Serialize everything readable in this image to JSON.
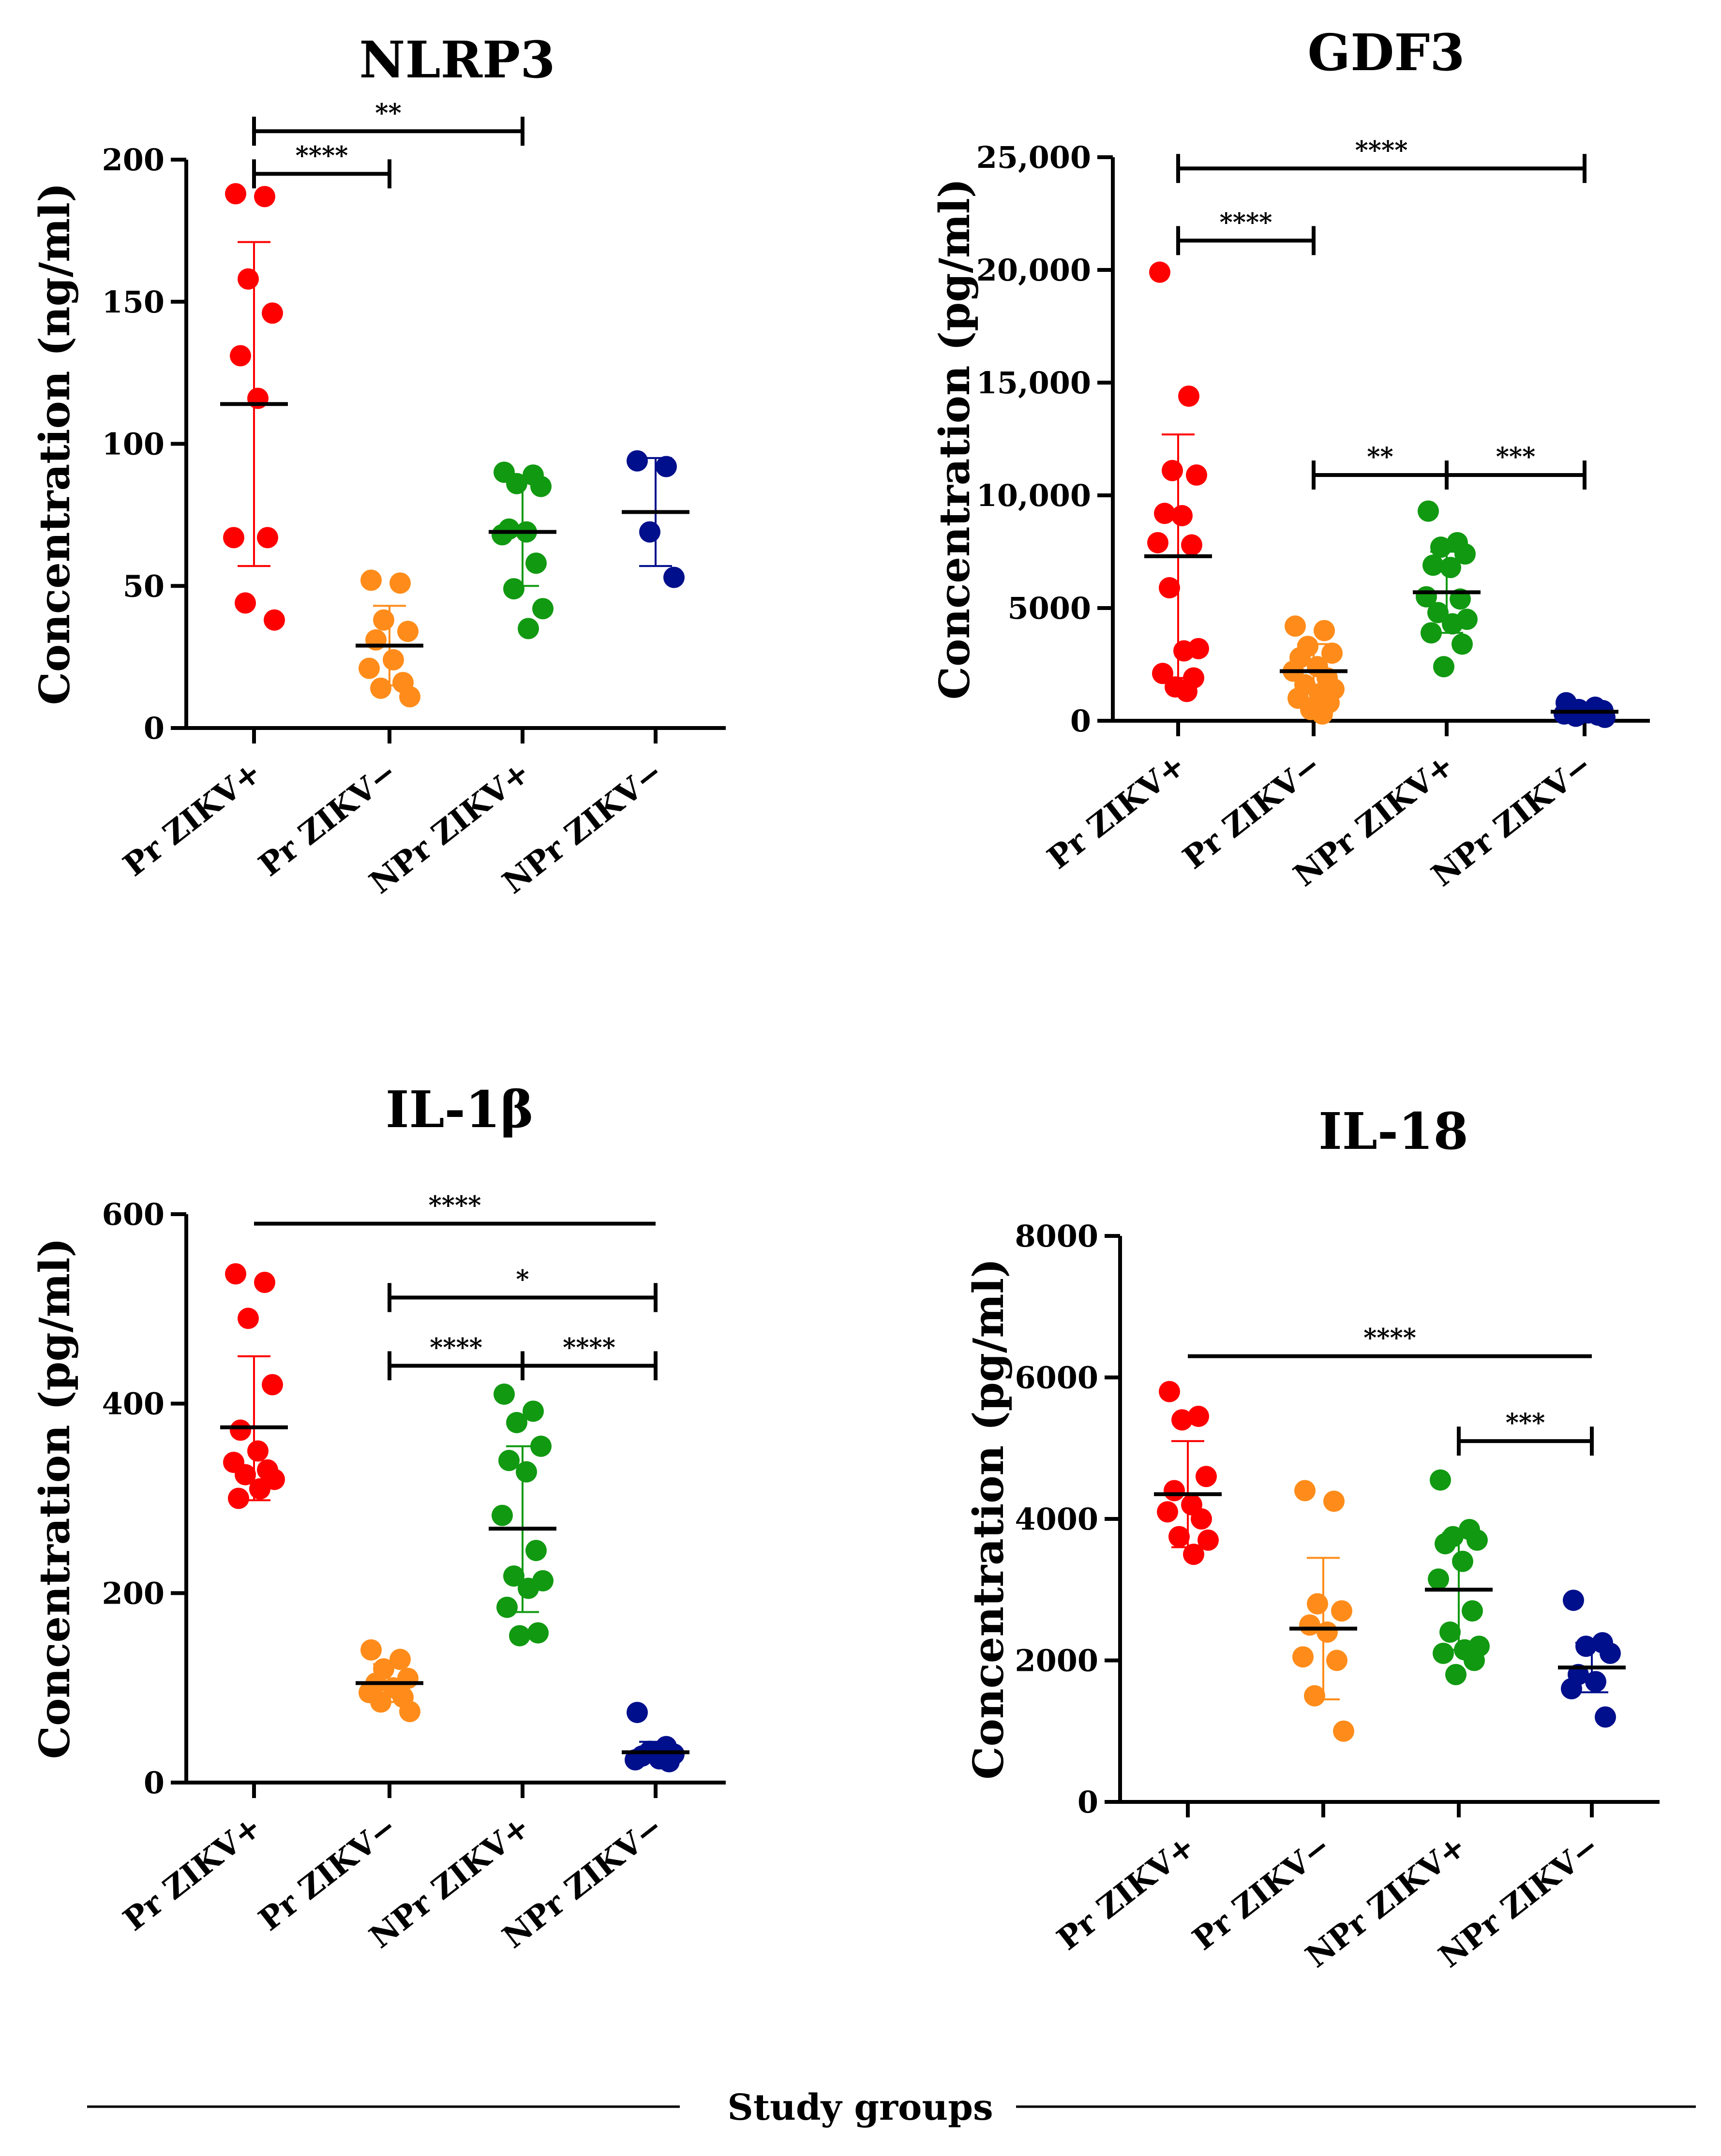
{
  "footer": {
    "label": "Study groups"
  },
  "group_colors": [
    "#ff0000",
    "#ff8c1a",
    "#119911",
    "#000f8c"
  ],
  "chart_data": [
    {
      "type": "scatter",
      "title": "NLRP3",
      "ylabel": "Concentration (ng/ml)",
      "ylim": [
        0,
        200
      ],
      "yticks": [
        0,
        50,
        100,
        150,
        200
      ],
      "ytick_labels": [
        "0",
        "50",
        "100",
        "150",
        "200"
      ],
      "categories": [
        "Pr ZIKV+",
        "Pr ZIKV−",
        "NPr ZIKV+",
        "NPr ZIKV−"
      ],
      "groups": [
        {
          "name": "Pr ZIKV+",
          "mean": 114,
          "sd_low": 57,
          "sd_high": 171,
          "points": [
            188,
            187,
            158,
            146,
            131,
            116,
            67,
            67,
            44,
            38
          ]
        },
        {
          "name": "Pr ZIKV−",
          "mean": 29,
          "sd_low": 15,
          "sd_high": 43,
          "points": [
            52,
            51,
            38,
            34,
            31,
            24,
            21,
            16,
            14,
            11
          ]
        },
        {
          "name": "NPr ZIKV+",
          "mean": 69,
          "sd_low": 50,
          "sd_high": 88,
          "points": [
            90,
            89,
            86,
            85,
            70,
            69,
            68,
            58,
            49,
            42,
            35
          ]
        },
        {
          "name": "NPr ZIKV−",
          "mean": 76,
          "sd_low": 57,
          "sd_high": 95,
          "points": [
            94,
            92,
            69,
            53
          ]
        }
      ],
      "comparisons": [
        {
          "from": 0,
          "to": 1,
          "label": "****",
          "y": 195,
          "center_tick": false
        },
        {
          "from": 0,
          "to": 2,
          "label": "**",
          "y": 210,
          "center_tick": false
        }
      ]
    },
    {
      "type": "scatter",
      "title": "GDF3",
      "ylabel": "Concentration (pg/ml)",
      "ylim": [
        0,
        25000
      ],
      "yticks": [
        0,
        5000,
        10000,
        15000,
        20000,
        25000
      ],
      "ytick_labels": [
        "0",
        "5000",
        "10,000",
        "15,000",
        "20,000",
        "25,000"
      ],
      "categories": [
        "Pr ZIKV+",
        "Pr ZIKV−",
        "NPr ZIKV+",
        "NPr ZIKV−"
      ],
      "groups": [
        {
          "name": "Pr ZIKV+",
          "mean": 7300,
          "sd_low": 1900,
          "sd_high": 12700,
          "points": [
            19900,
            14400,
            11100,
            10900,
            9200,
            9100,
            7900,
            7800,
            5900,
            3200,
            3100,
            2100,
            1900,
            1500,
            1300
          ]
        },
        {
          "name": "Pr ZIKV−",
          "mean": 2200,
          "sd_low": 1000,
          "sd_high": 3400,
          "points": [
            4200,
            4000,
            3300,
            3000,
            2800,
            2400,
            2200,
            1900,
            1600,
            1400,
            1200,
            1000,
            800,
            500,
            300
          ]
        },
        {
          "name": "NPr ZIKV+",
          "mean": 5700,
          "sd_low": 3900,
          "sd_high": 7500,
          "points": [
            9300,
            7900,
            7700,
            7400,
            6900,
            6800,
            5500,
            5400,
            4800,
            4500,
            4300,
            3900,
            3400,
            2400
          ]
        },
        {
          "name": "NPr ZIKV−",
          "mean": 400,
          "sd_low": 200,
          "sd_high": 600,
          "points": [
            800,
            600,
            500,
            450,
            400,
            350,
            300,
            250,
            200,
            150
          ]
        }
      ],
      "comparisons": [
        {
          "from": 0,
          "to": 3,
          "label": "****",
          "y": 24500,
          "center_tick": false
        },
        {
          "from": 0,
          "to": 1,
          "label": "****",
          "y": 21300,
          "center_tick": false
        },
        {
          "from": 1,
          "to": 3,
          "label": "**",
          "label2": "***",
          "y": 10900,
          "center_tick": true
        }
      ]
    },
    {
      "type": "scatter",
      "title": "IL-1β",
      "ylabel": "Concentration (pg/ml)",
      "ylim": [
        0,
        600
      ],
      "yticks": [
        0,
        200,
        400,
        600
      ],
      "ytick_labels": [
        "0",
        "200",
        "400",
        "600"
      ],
      "categories": [
        "Pr ZIKV+",
        "Pr ZIKV−",
        "NPr ZIKV+",
        "NPr ZIKV−"
      ],
      "groups": [
        {
          "name": "Pr ZIKV+",
          "mean": 375,
          "sd_low": 298,
          "sd_high": 450,
          "points": [
            537,
            528,
            490,
            420,
            372,
            350,
            338,
            330,
            325,
            320,
            310,
            300
          ]
        },
        {
          "name": "Pr ZIKV−",
          "mean": 105,
          "sd_low": 85,
          "sd_high": 125,
          "points": [
            140,
            130,
            120,
            110,
            105,
            100,
            95,
            90,
            85,
            75
          ]
        },
        {
          "name": "NPr ZIKV+",
          "mean": 268,
          "sd_low": 180,
          "sd_high": 355,
          "points": [
            410,
            392,
            380,
            355,
            340,
            328,
            282,
            245,
            218,
            213,
            205,
            185,
            158,
            155
          ]
        },
        {
          "name": "NPr ZIKV−",
          "mean": 32,
          "sd_low": 22,
          "sd_high": 43,
          "points": [
            74,
            38,
            33,
            30,
            28,
            25,
            24,
            22
          ]
        }
      ],
      "comparisons": [
        {
          "from": 0,
          "to": 3,
          "label": "****",
          "y": 590,
          "center_tick": false,
          "no_caps": true
        },
        {
          "from": 1,
          "to": 3,
          "label": "*",
          "y": 512,
          "center_tick": false
        },
        {
          "from": 1,
          "to": 3,
          "label": "****",
          "label2": "****",
          "y": 440,
          "center_tick": true
        }
      ]
    },
    {
      "type": "scatter",
      "title": "IL-18",
      "ylabel": "Concentration (pg/ml)",
      "ylim": [
        0,
        8000
      ],
      "yticks": [
        0,
        2000,
        4000,
        6000,
        8000
      ],
      "ytick_labels": [
        "0",
        "2000",
        "4000",
        "6000",
        "8000"
      ],
      "categories": [
        "Pr ZIKV+",
        "Pr ZIKV−",
        "NPr ZIKV+",
        "NPr ZIKV−"
      ],
      "groups": [
        {
          "name": "Pr ZIKV+",
          "mean": 4350,
          "sd_low": 3600,
          "sd_high": 5100,
          "points": [
            5800,
            5450,
            5400,
            4600,
            4400,
            4200,
            4100,
            4000,
            3750,
            3700,
            3500
          ]
        },
        {
          "name": "Pr ZIKV−",
          "mean": 2450,
          "sd_low": 1450,
          "sd_high": 3450,
          "points": [
            4400,
            4250,
            2800,
            2700,
            2500,
            2400,
            2050,
            2000,
            1500,
            1000
          ]
        },
        {
          "name": "NPr ZIKV+",
          "mean": 3000,
          "sd_low": 2150,
          "sd_high": 3800,
          "points": [
            4550,
            3850,
            3750,
            3700,
            3650,
            3400,
            3150,
            2700,
            2400,
            2200,
            2150,
            2100,
            2000,
            1800
          ]
        },
        {
          "name": "NPr ZIKV−",
          "mean": 1900,
          "sd_low": 1550,
          "sd_high": 2250,
          "points": [
            2850,
            2250,
            2200,
            2100,
            1800,
            1700,
            1600,
            1200
          ]
        }
      ],
      "comparisons": [
        {
          "from": 0,
          "to": 3,
          "label": "****",
          "y": 6300,
          "center_tick": false,
          "no_caps": true
        },
        {
          "from": 2,
          "to": 3,
          "label": "***",
          "y": 5100,
          "center_tick": false
        }
      ]
    }
  ]
}
